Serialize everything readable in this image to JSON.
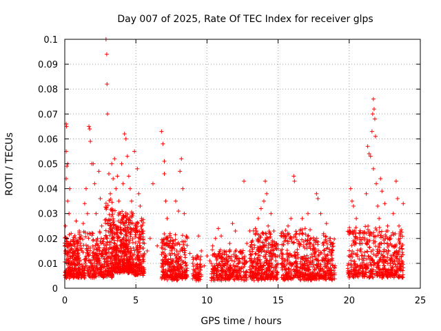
{
  "chart_data": {
    "type": "scatter",
    "title": "Day 007 of 2025, Rate Of TEC Index for receiver glps",
    "xlabel": "GPS time / hours",
    "ylabel": "ROTI / TECUs",
    "xlim": [
      0,
      25
    ],
    "ylim": [
      0,
      0.1
    ],
    "xticks": [
      0,
      5,
      10,
      15,
      20,
      25
    ],
    "xtick_labels": [
      "0",
      "5",
      "10",
      "15",
      "20",
      "25"
    ],
    "yticks": [
      0,
      0.01,
      0.02,
      0.03,
      0.04,
      0.05,
      0.06,
      0.07,
      0.08,
      0.09,
      0.1
    ],
    "ytick_labels": [
      "0",
      "0.01",
      "0.02",
      "0.03",
      "0.04",
      "0.05",
      "0.06",
      "0.07",
      "0.08",
      "0.09",
      "0.1"
    ],
    "grid": true,
    "marker": "+",
    "color": "#ff0000",
    "series": [
      {
        "name": "ROTI",
        "points": [
          [
            0.1,
            0.066
          ],
          [
            0.12,
            0.065
          ],
          [
            0.1,
            0.055
          ],
          [
            0.15,
            0.049
          ],
          [
            0.2,
            0.05
          ],
          [
            0.1,
            0.044
          ],
          [
            0.2,
            0.035
          ],
          [
            0.3,
            0.03
          ],
          [
            0.05,
            0.025
          ],
          [
            0.15,
            0.02
          ],
          [
            0.3,
            0.015
          ],
          [
            0.4,
            0.012
          ],
          [
            0.5,
            0.01
          ],
          [
            0.2,
            0.008
          ],
          [
            0.6,
            0.006
          ],
          [
            0.35,
            0.04
          ],
          [
            0.45,
            0.022
          ],
          [
            0.7,
            0.018
          ],
          [
            0.8,
            0.027
          ],
          [
            0.9,
            0.014
          ],
          [
            1.0,
            0.012
          ],
          [
            1.1,
            0.02
          ],
          [
            1.2,
            0.016
          ],
          [
            1.3,
            0.026
          ],
          [
            1.4,
            0.034
          ],
          [
            1.5,
            0.04
          ],
          [
            1.6,
            0.03
          ],
          [
            1.7,
            0.065
          ],
          [
            1.75,
            0.064
          ],
          [
            1.8,
            0.059
          ],
          [
            1.9,
            0.05
          ],
          [
            2.0,
            0.05
          ],
          [
            2.1,
            0.042
          ],
          [
            2.2,
            0.03
          ],
          [
            2.3,
            0.02
          ],
          [
            2.4,
            0.047
          ],
          [
            2.5,
            0.036
          ],
          [
            2.6,
            0.025
          ],
          [
            2.7,
            0.015
          ],
          [
            2.8,
            0.01
          ],
          [
            2.9,
            0.1
          ],
          [
            2.95,
            0.094
          ],
          [
            2.97,
            0.082
          ],
          [
            3.0,
            0.07
          ],
          [
            3.1,
            0.046
          ],
          [
            3.2,
            0.038
          ],
          [
            3.3,
            0.05
          ],
          [
            3.4,
            0.044
          ],
          [
            3.5,
            0.052
          ],
          [
            3.6,
            0.04
          ],
          [
            3.7,
            0.045
          ],
          [
            3.8,
            0.035
          ],
          [
            3.9,
            0.03
          ],
          [
            4.0,
            0.05
          ],
          [
            4.1,
            0.042
          ],
          [
            4.2,
            0.062
          ],
          [
            4.3,
            0.06
          ],
          [
            4.4,
            0.053
          ],
          [
            4.5,
            0.045
          ],
          [
            4.6,
            0.04
          ],
          [
            4.7,
            0.035
          ],
          [
            4.8,
            0.03
          ],
          [
            4.9,
            0.055
          ],
          [
            5.0,
            0.025
          ],
          [
            5.1,
            0.048
          ],
          [
            5.2,
            0.038
          ],
          [
            5.3,
            0.033
          ],
          [
            5.4,
            0.028
          ],
          [
            5.5,
            0.022
          ],
          [
            5.6,
            0.018
          ],
          [
            5.8,
            0.015
          ],
          [
            6.0,
            0.02
          ],
          [
            6.2,
            0.042
          ],
          [
            6.5,
            0.017
          ],
          [
            6.8,
            0.063
          ],
          [
            6.9,
            0.058
          ],
          [
            7.0,
            0.051
          ],
          [
            7.0,
            0.046
          ],
          [
            7.1,
            0.035
          ],
          [
            7.2,
            0.028
          ],
          [
            7.4,
            0.022
          ],
          [
            7.6,
            0.018
          ],
          [
            7.8,
            0.035
          ],
          [
            8.0,
            0.031
          ],
          [
            8.1,
            0.047
          ],
          [
            8.2,
            0.052
          ],
          [
            8.3,
            0.04
          ],
          [
            8.4,
            0.03
          ],
          [
            8.6,
            0.02
          ],
          [
            8.8,
            0.014
          ],
          [
            9.0,
            0.01
          ],
          [
            9.2,
            0.012
          ],
          [
            9.4,
            0.021
          ],
          [
            9.6,
            0.015
          ],
          [
            9.8,
            0.009
          ],
          [
            10.0,
            0.013
          ],
          [
            10.2,
            0.011
          ],
          [
            10.4,
            0.017
          ],
          [
            10.6,
            0.02
          ],
          [
            10.8,
            0.024
          ],
          [
            11.0,
            0.021
          ],
          [
            11.2,
            0.015
          ],
          [
            11.4,
            0.011
          ],
          [
            11.6,
            0.018
          ],
          [
            11.8,
            0.026
          ],
          [
            12.0,
            0.023
          ],
          [
            12.2,
            0.012
          ],
          [
            12.4,
            0.015
          ],
          [
            12.6,
            0.043
          ],
          [
            12.8,
            0.018
          ],
          [
            13.0,
            0.012
          ],
          [
            13.2,
            0.01
          ],
          [
            13.4,
            0.024
          ],
          [
            13.6,
            0.028
          ],
          [
            13.8,
            0.032
          ],
          [
            14.0,
            0.035
          ],
          [
            14.1,
            0.043
          ],
          [
            14.2,
            0.038
          ],
          [
            14.3,
            0.025
          ],
          [
            14.5,
            0.03
          ],
          [
            14.7,
            0.023
          ],
          [
            14.9,
            0.018
          ],
          [
            15.1,
            0.013
          ],
          [
            15.3,
            0.01
          ],
          [
            15.5,
            0.02
          ],
          [
            15.7,
            0.025
          ],
          [
            15.9,
            0.028
          ],
          [
            16.1,
            0.045
          ],
          [
            16.15,
            0.043
          ],
          [
            16.3,
            0.022
          ],
          [
            16.5,
            0.018
          ],
          [
            16.7,
            0.028
          ],
          [
            16.9,
            0.024
          ],
          [
            17.1,
            0.03
          ],
          [
            17.3,
            0.02
          ],
          [
            17.5,
            0.016
          ],
          [
            17.7,
            0.038
          ],
          [
            17.8,
            0.036
          ],
          [
            18.0,
            0.03
          ],
          [
            18.2,
            0.022
          ],
          [
            18.4,
            0.026
          ],
          [
            18.6,
            0.02
          ],
          [
            18.8,
            0.015
          ],
          [
            19.0,
            0.009
          ],
          [
            20.0,
            0.023
          ],
          [
            20.1,
            0.04
          ],
          [
            20.2,
            0.035
          ],
          [
            20.3,
            0.033
          ],
          [
            20.5,
            0.028
          ],
          [
            20.7,
            0.022
          ],
          [
            20.9,
            0.018
          ],
          [
            21.1,
            0.013
          ],
          [
            21.2,
            0.038
          ],
          [
            21.3,
            0.057
          ],
          [
            21.4,
            0.054
          ],
          [
            21.5,
            0.053
          ],
          [
            21.6,
            0.063
          ],
          [
            21.65,
            0.07
          ],
          [
            21.7,
            0.076
          ],
          [
            21.75,
            0.072
          ],
          [
            21.8,
            0.068
          ],
          [
            21.85,
            0.061
          ],
          [
            21.7,
            0.048
          ],
          [
            21.9,
            0.042
          ],
          [
            22.0,
            0.033
          ],
          [
            22.1,
            0.028
          ],
          [
            22.3,
            0.039
          ],
          [
            22.5,
            0.034
          ],
          [
            22.7,
            0.025
          ],
          [
            22.9,
            0.02
          ],
          [
            23.1,
            0.03
          ],
          [
            23.3,
            0.043
          ],
          [
            23.4,
            0.036
          ],
          [
            23.5,
            0.025
          ],
          [
            23.6,
            0.02
          ],
          [
            23.8,
            0.034
          ],
          [
            22.2,
            0.044
          ],
          [
            22.6,
            0.015
          ],
          [
            23.0,
            0.012
          ],
          [
            23.7,
            0.009
          ]
        ],
        "dense_clusters": [
          {
            "x": [
              0.0,
              1.0
            ],
            "y": [
              0.004,
              0.02
            ],
            "count": 220
          },
          {
            "x": [
              1.0,
              2.8
            ],
            "y": [
              0.004,
              0.022
            ],
            "count": 260
          },
          {
            "x": [
              2.8,
              3.4
            ],
            "y": [
              0.004,
              0.035
            ],
            "count": 150
          },
          {
            "x": [
              3.4,
              4.8
            ],
            "y": [
              0.006,
              0.03
            ],
            "count": 420
          },
          {
            "x": [
              4.8,
              5.6
            ],
            "y": [
              0.005,
              0.026
            ],
            "count": 160
          },
          {
            "x": [
              6.8,
              8.6
            ],
            "y": [
              0.003,
              0.02
            ],
            "count": 300
          },
          {
            "x": [
              9.0,
              9.6
            ],
            "y": [
              0.003,
              0.012
            ],
            "count": 70
          },
          {
            "x": [
              10.3,
              12.8
            ],
            "y": [
              0.003,
              0.014
            ],
            "count": 280
          },
          {
            "x": [
              13.0,
              15.0
            ],
            "y": [
              0.003,
              0.022
            ],
            "count": 340
          },
          {
            "x": [
              15.2,
              17.5
            ],
            "y": [
              0.003,
              0.022
            ],
            "count": 330
          },
          {
            "x": [
              17.5,
              19.0
            ],
            "y": [
              0.003,
              0.02
            ],
            "count": 200
          },
          {
            "x": [
              19.9,
              22.3
            ],
            "y": [
              0.004,
              0.024
            ],
            "count": 300
          },
          {
            "x": [
              22.3,
              23.8
            ],
            "y": [
              0.004,
              0.022
            ],
            "count": 210
          }
        ]
      }
    ]
  }
}
